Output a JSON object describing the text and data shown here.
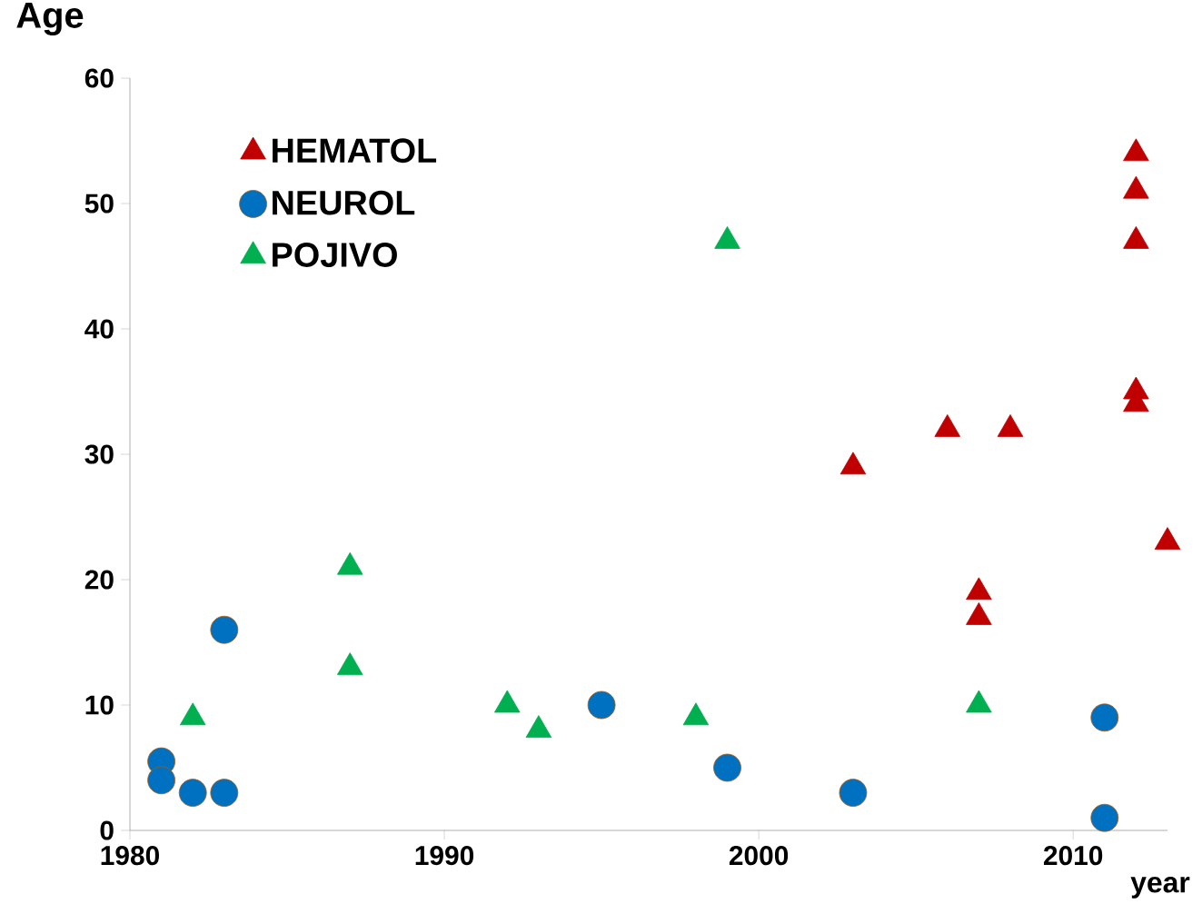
{
  "chart_data": {
    "type": "scatter",
    "xlabel": "year",
    "ylabel": "Age",
    "xlim": [
      1980,
      2013
    ],
    "xticks": [
      1980,
      1990,
      2000,
      2010
    ],
    "ylim": [
      0,
      60
    ],
    "yticks": [
      0,
      10,
      20,
      30,
      40,
      50,
      60
    ],
    "grid": false,
    "legend": "top left",
    "series": [
      {
        "name": "HEMATOL",
        "color": "#c00000",
        "marker": "triangle",
        "x": [
          2003,
          2006,
          2008,
          2007,
          2007,
          2012,
          2012,
          2012,
          2012,
          2012,
          2013
        ],
        "values": [
          29,
          32,
          32,
          19,
          17,
          54,
          51,
          47,
          35,
          34,
          23
        ]
      },
      {
        "name": "NEUROL",
        "color": "#0070c0",
        "marker": "circle",
        "x": [
          1981,
          1981,
          1982,
          1983,
          1983,
          1995,
          1999,
          2003,
          2011,
          2011
        ],
        "values": [
          5.5,
          4,
          3,
          3,
          16,
          10,
          5,
          3,
          9,
          1
        ]
      },
      {
        "name": "POJIVO",
        "color": "#00b050",
        "marker": "triangle",
        "x": [
          1982,
          1987,
          1987,
          1992,
          1993,
          1998,
          1999,
          2007
        ],
        "values": [
          9,
          21,
          13,
          10,
          8,
          9,
          47,
          10
        ]
      }
    ]
  }
}
